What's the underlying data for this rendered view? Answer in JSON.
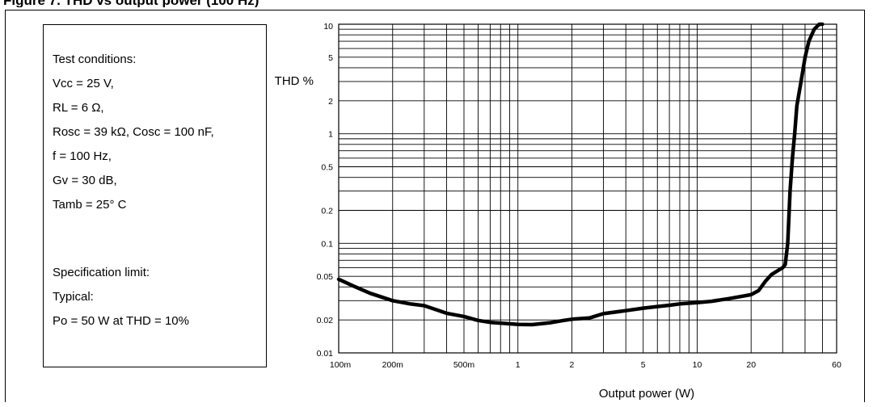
{
  "figure": {
    "caption": "Figure 7. THD vs output power (100 Hz)"
  },
  "test_conditions": {
    "lines": [
      "Test conditions:",
      "Vcc = 25 V,",
      "RL = 6 Ω,",
      "Rosc = 39 kΩ, Cosc = 100 nF,",
      "f = 100 Hz,",
      "Gv = 30 dB,",
      "Tamb = 25° C"
    ],
    "spec_lines": [
      "Specification limit:",
      "Typical:",
      "Po = 50 W at THD = 10%"
    ]
  },
  "chart_data": {
    "type": "line",
    "title": "",
    "xlabel": "Output power (W)",
    "ylabel": "THD %",
    "x_scale": "log",
    "y_scale": "log",
    "xlim": [
      0.1,
      60
    ],
    "ylim": [
      0.01,
      10
    ],
    "grid": true,
    "x_ticks": [
      {
        "value": 0.1,
        "label": "100m"
      },
      {
        "value": 0.2,
        "label": "200m"
      },
      {
        "value": 0.5,
        "label": "500m"
      },
      {
        "value": 1,
        "label": "1"
      },
      {
        "value": 2,
        "label": "2"
      },
      {
        "value": 5,
        "label": "5"
      },
      {
        "value": 10,
        "label": "10"
      },
      {
        "value": 20,
        "label": "20"
      },
      {
        "value": 60,
        "label": "60"
      }
    ],
    "y_ticks": [
      {
        "value": 0.01,
        "label": "0.01"
      },
      {
        "value": 0.02,
        "label": "0.02"
      },
      {
        "value": 0.05,
        "label": "0.05"
      },
      {
        "value": 0.1,
        "label": "0.1"
      },
      {
        "value": 0.2,
        "label": "0.2"
      },
      {
        "value": 0.5,
        "label": "0.5"
      },
      {
        "value": 1,
        "label": "1"
      },
      {
        "value": 2,
        "label": "2"
      },
      {
        "value": 5,
        "label": "5"
      },
      {
        "value": 10,
        "label": "10"
      }
    ],
    "series": [
      {
        "color": "#000000",
        "x": [
          0.1,
          0.12,
          0.15,
          0.2,
          0.25,
          0.3,
          0.4,
          0.5,
          0.6,
          0.7,
          0.8,
          1.0,
          1.2,
          1.5,
          1.8,
          2.0,
          2.5,
          3.0,
          4.0,
          5.0,
          6.0,
          7.0,
          8.0,
          10,
          12,
          15,
          18,
          20,
          22,
          24,
          26,
          28,
          30,
          31,
          32,
          33,
          34,
          35,
          36,
          38,
          40,
          42,
          45,
          48,
          50
        ],
        "y": [
          0.047,
          0.041,
          0.035,
          0.03,
          0.028,
          0.027,
          0.023,
          0.0215,
          0.0198,
          0.019,
          0.0187,
          0.0182,
          0.0181,
          0.0188,
          0.0198,
          0.0203,
          0.0208,
          0.0228,
          0.0243,
          0.0256,
          0.0265,
          0.0272,
          0.028,
          0.0288,
          0.0296,
          0.0313,
          0.033,
          0.034,
          0.037,
          0.045,
          0.052,
          0.056,
          0.06,
          0.064,
          0.1,
          0.3,
          0.6,
          1.0,
          1.8,
          3.0,
          5.0,
          7.0,
          9.0,
          10.0,
          10.0
        ]
      }
    ]
  }
}
